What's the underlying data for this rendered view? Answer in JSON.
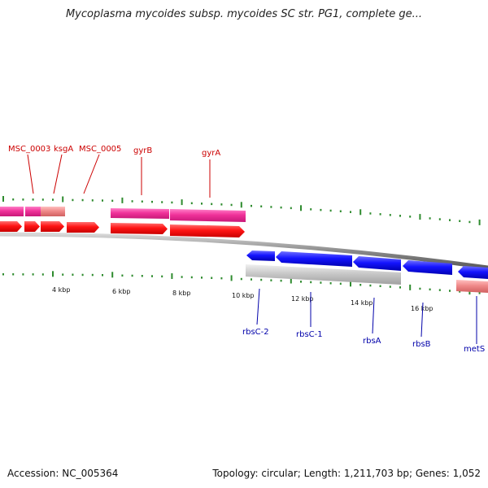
{
  "title": "Mycoplasma mycoides subsp. mycoides SC str. PG1, complete ge...",
  "footer": {
    "accession": "Accession: NC_005364",
    "summary": "Topology: circular; Length: 1,211,703 bp; Genes: 1,052"
  },
  "colors": {
    "forward_gene": "#ff1a1a",
    "forward_cds": "#f0329a",
    "reverse_gene": "#1a1aff",
    "reverse_cds_gray": "#c8c8c8",
    "reverse_cds_pink": "#f08a8a",
    "tick": "#2e8b2e",
    "forward_label": "#cc0000",
    "reverse_label": "#0000aa",
    "backbone": "#9a9a9a"
  },
  "scale": {
    "ticks": [
      {
        "label": "4 kbp"
      },
      {
        "label": "6 kbp"
      },
      {
        "label": "8 kbp"
      },
      {
        "label": "10 kbp"
      },
      {
        "label": "12 kbp"
      },
      {
        "label": "14 kbp"
      },
      {
        "label": "16 kbp"
      }
    ]
  },
  "forward_labels": [
    "MSC_0003",
    "ksgA",
    "MSC_0005",
    "gyrB",
    "gyrA"
  ],
  "reverse_labels": [
    "rbsC-2",
    "rbsC-1",
    "rbsA",
    "rbsB",
    "metS"
  ]
}
